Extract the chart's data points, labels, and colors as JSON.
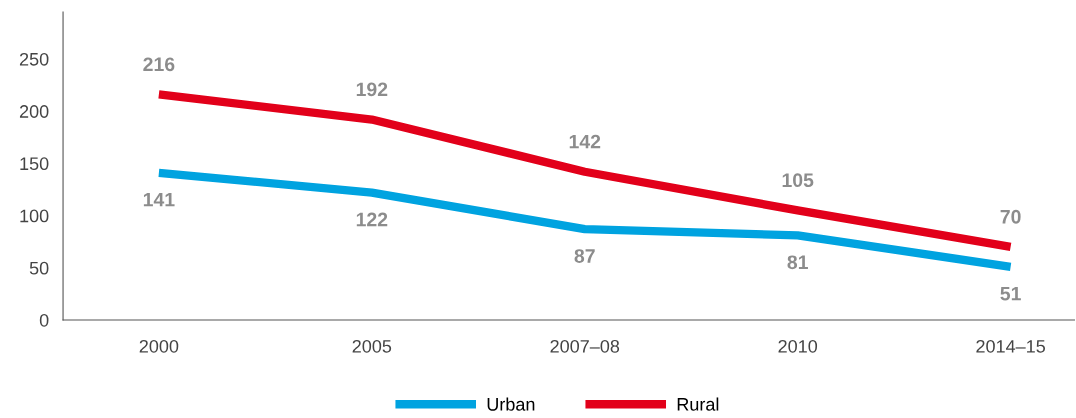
{
  "chart_data": {
    "type": "line",
    "categories": [
      "2000",
      "2005",
      "2007–08",
      "2010",
      "2014–15"
    ],
    "series": [
      {
        "name": "Urban",
        "color": "#00a3e0",
        "values": [
          141,
          122,
          87,
          81,
          51
        ]
      },
      {
        "name": "Rural",
        "color": "#e2001a",
        "values": [
          216,
          192,
          142,
          105,
          70
        ]
      }
    ],
    "ylim": [
      0,
      295
    ],
    "yticks": [
      0,
      50,
      100,
      150,
      200,
      250
    ],
    "grid": false,
    "legend": "bottom",
    "data_labels": true,
    "marker": "none",
    "line_style": "solid"
  }
}
